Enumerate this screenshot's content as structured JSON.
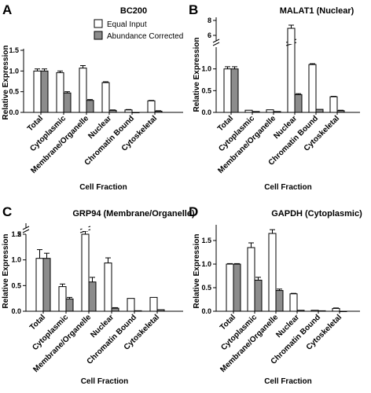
{
  "chart_data": [
    {
      "type": "bar",
      "panel": "A",
      "title": "BC200",
      "xlabel": "Cell Fraction",
      "ylabel": "Relative Expression",
      "ylim": [
        0,
        1.5
      ],
      "yticks": [
        "0.0",
        "0.5",
        "1.0",
        "1.5"
      ],
      "categories": [
        "Total",
        "Cytoplasmic",
        "Membrane/Organelle",
        "Nuclear",
        "Chromatin Bound",
        "Cytoskeletal"
      ],
      "legend": [
        "Equal Input",
        "Abundance Corrected"
      ],
      "series": [
        {
          "name": "Equal Input",
          "color": "#ffffff",
          "values": [
            1.0,
            0.96,
            1.07,
            0.72,
            0.06,
            0.28
          ],
          "errors": [
            0.05,
            0.04,
            0.06,
            0.02,
            0.01,
            0.01
          ]
        },
        {
          "name": "Abundance Corrected",
          "color": "#8c8c8c",
          "values": [
            1.0,
            0.47,
            0.29,
            0.05,
            0.0,
            0.03
          ],
          "errors": [
            0.05,
            0.03,
            0.02,
            0.01,
            0.0,
            0.01
          ]
        }
      ]
    },
    {
      "type": "bar",
      "panel": "B",
      "title": "MALAT1 (Nuclear)",
      "xlabel": "Cell Fraction",
      "ylabel": "Relative Expression",
      "ylim": [
        0,
        1.5
      ],
      "axis_break": true,
      "upper_ticks": [
        "6",
        "8"
      ],
      "yticks": [
        "0.0",
        "0.5",
        "1.0"
      ],
      "categories": [
        "Total",
        "Cytoplasmic",
        "Membrane/Organelle",
        "Nuclear",
        "Chromatin Bound",
        "Cytoskeletal"
      ],
      "series": [
        {
          "name": "Equal Input",
          "color": "#ffffff",
          "values": [
            1.0,
            0.05,
            0.06,
            6.5,
            1.1,
            0.36
          ],
          "errors": [
            0.05,
            0.0,
            0.0,
            0.3,
            0.02,
            0.01
          ]
        },
        {
          "name": "Abundance Corrected",
          "color": "#8c8c8c",
          "values": [
            1.0,
            0.02,
            0.02,
            0.41,
            0.07,
            0.04
          ],
          "errors": [
            0.05,
            0.0,
            0.0,
            0.02,
            0.0,
            0.01
          ]
        }
      ]
    },
    {
      "type": "bar",
      "panel": "C",
      "title": "GRP94 (Membrane/Organelle)",
      "xlabel": "Cell Fraction",
      "ylabel": "Relative Expression",
      "ylim": [
        0,
        1.5
      ],
      "axis_break": true,
      "upper_ticks": [
        "2"
      ],
      "yticks": [
        "0.0",
        "0.5",
        "1.0",
        "1.5"
      ],
      "categories": [
        "Total",
        "Cytoplasmic",
        "Membrane/Organelle",
        "Nuclear",
        "Chromatin Bound",
        "Cytoskeletal"
      ],
      "series": [
        {
          "name": "Equal Input",
          "color": "#ffffff",
          "values": [
            1.03,
            0.48,
            2.2,
            0.94,
            0.25,
            0.27
          ],
          "errors": [
            0.17,
            0.05,
            0.1,
            0.1,
            0.0,
            0.0
          ]
        },
        {
          "name": "Abundance Corrected",
          "color": "#8c8c8c",
          "values": [
            1.03,
            0.24,
            0.57,
            0.06,
            0.01,
            0.03
          ],
          "errors": [
            0.1,
            0.03,
            0.09,
            0.01,
            0.0,
            0.0
          ]
        }
      ]
    },
    {
      "type": "bar",
      "panel": "D",
      "title": "GAPDH (Cytoplasmic)",
      "xlabel": "Cell Fraction",
      "ylabel": "Relative Expression",
      "ylim": [
        0,
        1.8
      ],
      "yticks": [
        "0.0",
        "0.5",
        "1.0",
        "1.5"
      ],
      "categories": [
        "Total",
        "Cytoplasmic",
        "Membrane/Organelle",
        "Nuclear",
        "Chromatin Bound",
        "Cytoskeletal"
      ],
      "series": [
        {
          "name": "Equal Input",
          "color": "#ffffff",
          "values": [
            1.0,
            1.35,
            1.65,
            0.37,
            0.02,
            0.06
          ],
          "errors": [
            0.01,
            0.1,
            0.08,
            0.01,
            0.0,
            0.01
          ]
        },
        {
          "name": "Abundance Corrected",
          "color": "#8c8c8c",
          "values": [
            1.0,
            0.66,
            0.44,
            0.02,
            0.01,
            0.0
          ],
          "errors": [
            0.01,
            0.06,
            0.03,
            0.0,
            0.0,
            0.0
          ]
        }
      ]
    }
  ]
}
